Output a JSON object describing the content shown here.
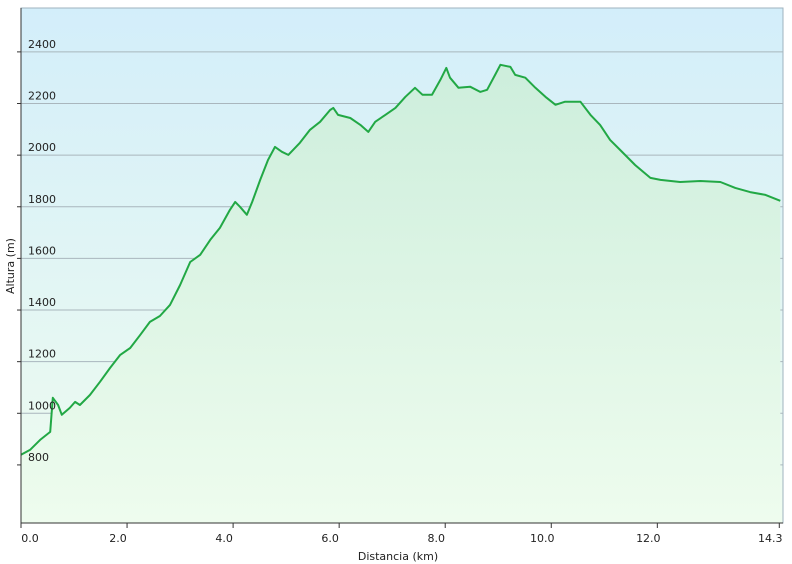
{
  "chart_data": {
    "type": "area-line",
    "xlabel": "Distancia  (km)",
    "ylabel": "Altura (m)",
    "color": "#22a845",
    "x": [
      0,
      0.17,
      0.36,
      0.55,
      0.6,
      0.7,
      0.77,
      0.92,
      1.02,
      1.11,
      1.3,
      1.49,
      1.68,
      1.87,
      2.06,
      2.25,
      2.43,
      2.62,
      2.81,
      3.0,
      3.19,
      3.38,
      3.57,
      3.75,
      3.94,
      4.04,
      4.13,
      4.26,
      4.36,
      4.51,
      4.66,
      4.79,
      4.92,
      5.04,
      5.26,
      5.45,
      5.64,
      5.83,
      5.89,
      5.98,
      6.21,
      6.4,
      6.55,
      6.68,
      6.87,
      7.06,
      7.25,
      7.43,
      7.57,
      7.75,
      7.91,
      8.02,
      8.09,
      8.25,
      8.47,
      8.66,
      8.79,
      8.94,
      9.04,
      9.23,
      9.32,
      9.51,
      9.7,
      9.89,
      10.08,
      10.26,
      10.4,
      10.55,
      10.74,
      10.92,
      11.11,
      11.3,
      11.58,
      11.87,
      12.06,
      12.43,
      12.81,
      13.19,
      13.47,
      13.75,
      14.04,
      14.32
    ],
    "values": [
      839,
      858,
      897,
      928,
      1060,
      1032,
      994,
      1021,
      1044,
      1032,
      1071,
      1122,
      1176,
      1226,
      1253,
      1304,
      1354,
      1377,
      1420,
      1497,
      1586,
      1614,
      1672,
      1718,
      1788,
      1819,
      1800,
      1769,
      1819,
      1904,
      1982,
      2032,
      2013,
      2001,
      2048,
      2098,
      2129,
      2175,
      2183,
      2156,
      2144,
      2117,
      2090,
      2129,
      2156,
      2183,
      2226,
      2261,
      2234,
      2234,
      2292,
      2338,
      2300,
      2261,
      2265,
      2245,
      2253,
      2311,
      2350,
      2342,
      2311,
      2300,
      2261,
      2226,
      2195,
      2207,
      2207,
      2207,
      2156,
      2117,
      2059,
      2020,
      1962,
      1912,
      1904,
      1896,
      1900,
      1896,
      1873,
      1857,
      1846,
      1823
    ],
    "xlim": [
      0,
      14.37
    ],
    "ylim": [
      575,
      2570
    ],
    "xticks": [
      {
        "value": 0,
        "label": "0.0"
      },
      {
        "value": 2,
        "label": "2.0"
      },
      {
        "value": 4,
        "label": "4.0"
      },
      {
        "value": 6,
        "label": "6.0"
      },
      {
        "value": 8,
        "label": "8.0"
      },
      {
        "value": 10,
        "label": "10.0"
      },
      {
        "value": 12,
        "label": "12.0"
      },
      {
        "value": 14.3,
        "label": "14.3"
      }
    ],
    "yticks": [
      800,
      1000,
      1200,
      1400,
      1600,
      1800,
      2000,
      2200,
      2400
    ],
    "grid": true
  }
}
